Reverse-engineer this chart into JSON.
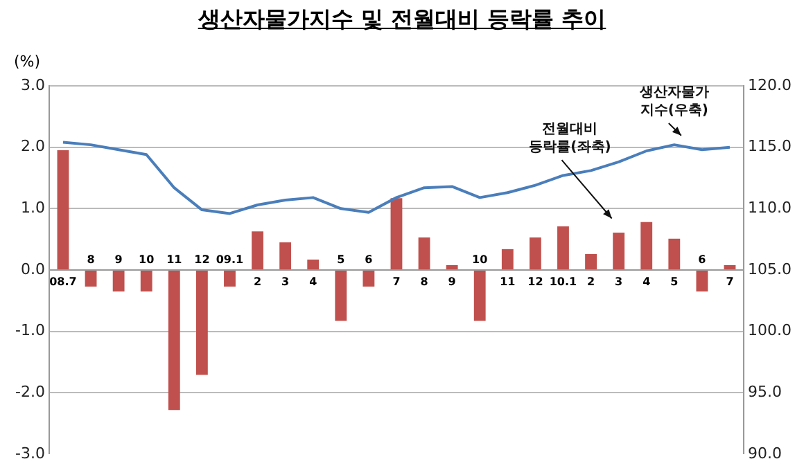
{
  "chart_data": {
    "type": "bar",
    "title": "생산자물가지수 및 전월대비 등락률 추이",
    "ylabel": "(%)",
    "categories": [
      "08.7",
      "8",
      "9",
      "10",
      "11",
      "12",
      "09.1",
      "2",
      "3",
      "4",
      "5",
      "6",
      "7",
      "8",
      "9",
      "10",
      "11",
      "12",
      "10.1",
      "2",
      "3",
      "4",
      "5",
      "6",
      "7"
    ],
    "series": [
      {
        "color": "#c0504d",
        "values": [
          1.95,
          -0.27,
          -0.35,
          -0.35,
          -2.28,
          -1.71,
          -0.27,
          0.63,
          0.45,
          0.17,
          -0.83,
          -0.27,
          1.17,
          0.53,
          0.08,
          -0.83,
          0.34,
          0.53,
          0.71,
          0.26,
          0.61,
          0.78,
          0.51,
          -0.35,
          0.08
        ]
      },
      {
        "type": "line",
        "axis": "y2",
        "color": "#4a7ebb",
        "values": [
          115.4,
          115.2,
          114.8,
          114.4,
          111.7,
          109.9,
          109.6,
          110.3,
          110.7,
          110.9,
          110.0,
          109.7,
          110.9,
          111.7,
          111.8,
          110.9,
          111.3,
          111.9,
          112.7,
          113.1,
          113.8,
          114.7,
          115.2,
          114.8,
          115.0
        ]
      }
    ],
    "ylim": [
      -3.0,
      3.0
    ],
    "yticks": [
      {
        "value": -3,
        "label": "-3.0"
      },
      {
        "value": -2,
        "label": "-2.0"
      },
      {
        "value": -1,
        "label": "-1.0"
      },
      {
        "value": 0,
        "label": "0.0"
      },
      {
        "value": 1,
        "label": "1.0"
      },
      {
        "value": 2,
        "label": "2.0"
      },
      {
        "value": 3,
        "label": "3.0"
      }
    ],
    "y2lim": [
      90.0,
      120.0
    ],
    "y2ticks": [
      {
        "value": 90,
        "label": "90.0"
      },
      {
        "value": 95,
        "label": "95.0"
      },
      {
        "value": 100,
        "label": "100.0"
      },
      {
        "value": 105,
        "label": "105.0"
      },
      {
        "value": 110,
        "label": "110.0"
      },
      {
        "value": 115,
        "label": "115.0"
      },
      {
        "value": 120,
        "label": "120.0"
      }
    ],
    "annotations": [
      "전월대비\n등락률(좌축)",
      "생산자물가\n지수(우축)"
    ],
    "grid": "y",
    "legend": false,
    "marker": "none",
    "line_style": "solid"
  }
}
